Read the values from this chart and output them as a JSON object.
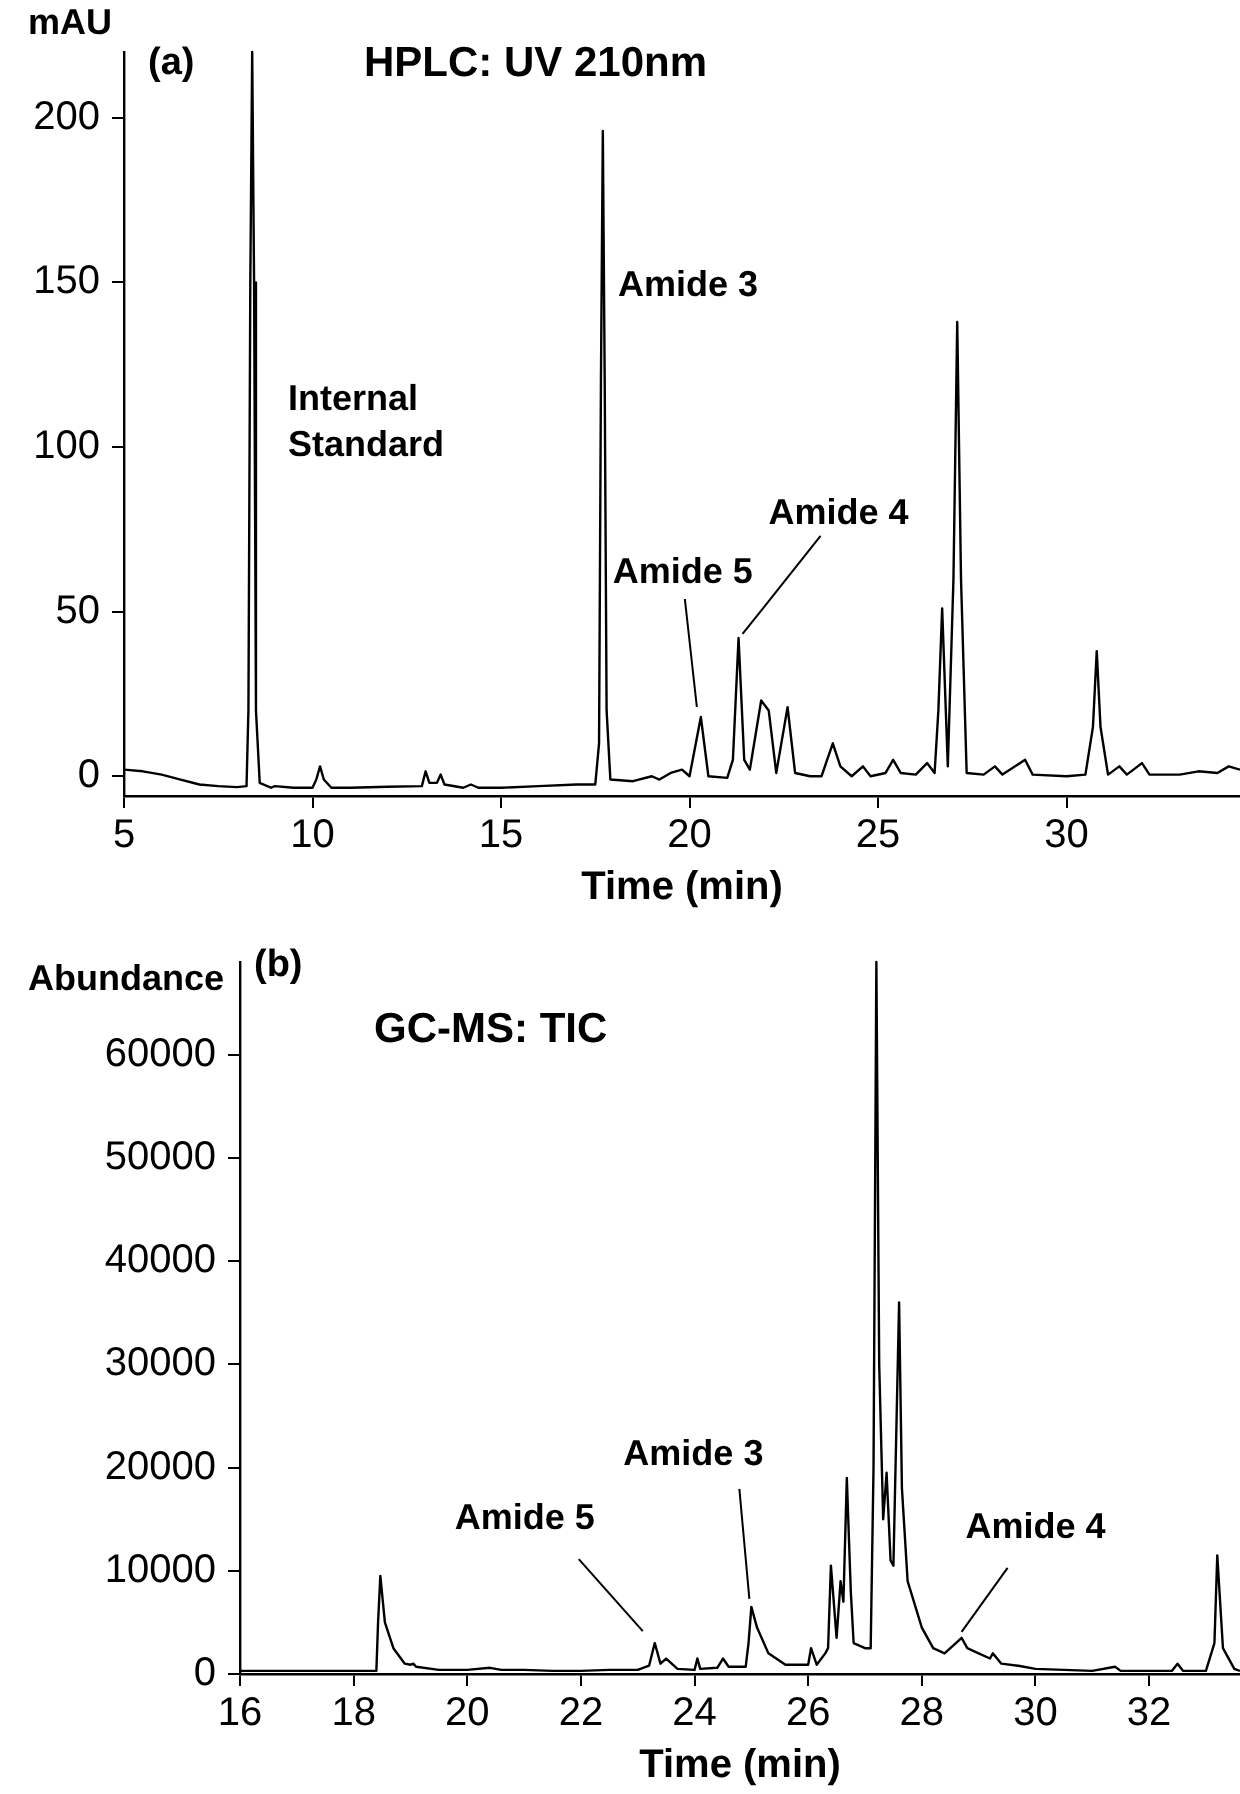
{
  "chart_data": [
    {
      "type": "line",
      "title": "HPLC: UV 210nm",
      "xlabel": "Time (min)",
      "ylabel": "mAU",
      "marker": "none",
      "line_style": "solid",
      "annotations": [
        "(a)",
        "Internal Standard",
        "Amide 3",
        {
          "text": "Amide 5",
          "x": 20.3,
          "y": 18
        },
        {
          "text": "Amide 4",
          "x": 21.3,
          "y": 42
        }
      ],
      "xlim": [
        5,
        34.6
      ],
      "ylim": [
        -6,
        220
      ],
      "xticks": [
        5,
        10,
        15,
        20,
        25,
        30
      ],
      "yticks": [
        0,
        50,
        100,
        150,
        200
      ],
      "x": [
        5,
        5.5,
        6,
        6.5,
        7,
        7.5,
        8,
        8.25,
        8.3,
        8.35,
        8.4,
        8.45,
        8.5,
        8.6,
        8.9,
        9,
        9.5,
        10,
        10.1,
        10.2,
        10.3,
        10.5,
        11,
        12,
        12.9,
        13,
        13.1,
        13.3,
        13.4,
        13.5,
        14,
        14.2,
        14.4,
        15,
        16,
        17,
        17.5,
        17.6,
        17.65,
        17.7,
        17.75,
        17.8,
        17.9,
        18.5,
        19,
        19.2,
        19.5,
        19.8,
        20,
        20.3,
        20.5,
        21,
        21.15,
        21.3,
        21.45,
        21.6,
        21.9,
        22.1,
        22.3,
        22.6,
        22.8,
        23.2,
        23.5,
        23.8,
        24,
        24.3,
        24.6,
        24.8,
        25.2,
        25.4,
        25.6,
        26,
        26.3,
        26.5,
        26.6,
        26.7,
        26.85,
        27,
        27.1,
        27.2,
        27.35,
        27.8,
        28.1,
        28.3,
        28.9,
        29.1,
        30,
        30.5,
        30.7,
        30.8,
        30.9,
        31.1,
        31.4,
        31.6,
        32,
        32.2,
        33,
        33.5,
        34,
        34.3,
        34.6
      ],
      "series": [
        {
          "color": "#000000",
          "values": [
            2,
            1.5,
            0.5,
            -1,
            -2.5,
            -3,
            -3.3,
            -3,
            20,
            150,
            220,
            150,
            20,
            -2,
            -3.5,
            -3,
            -3.5,
            -3.5,
            -1,
            3,
            -1,
            -3.5,
            -3.5,
            -3.2,
            -3,
            1.5,
            -2,
            -2,
            0.5,
            -2.5,
            -3.5,
            -2.5,
            -3.5,
            -3.5,
            -3,
            -2.5,
            -2.5,
            10,
            120,
            196,
            120,
            20,
            -1,
            -1.5,
            0,
            -1,
            1,
            2,
            0,
            18,
            0,
            -0.5,
            5,
            42,
            5,
            2,
            23,
            20,
            1,
            21,
            1,
            0,
            0,
            10,
            3,
            0,
            3,
            0,
            1,
            5,
            1,
            0.5,
            4,
            1,
            20,
            51,
            3,
            60,
            138,
            60,
            1,
            0.5,
            3,
            0.5,
            5,
            0.5,
            0,
            0.5,
            15,
            38,
            15,
            0.5,
            3,
            0.5,
            4,
            0.5,
            0.5,
            1.5,
            1,
            3,
            2
          ]
        }
      ]
    },
    {
      "type": "line",
      "title": "GC-MS: TIC",
      "xlabel": "Time (min)",
      "ylabel": "Abundance",
      "marker": "none",
      "line_style": "solid",
      "annotations": [
        "(b)",
        {
          "text": "Amide 5",
          "x": 23.3,
          "y": 3000
        },
        {
          "text": "Amide 3",
          "x": 25.0,
          "y": 6500
        },
        {
          "text": "Amide 4",
          "x": 28.7,
          "y": 3500
        }
      ],
      "xlim": [
        16,
        33.6
      ],
      "ylim": [
        0,
        69000
      ],
      "xticks": [
        16,
        18,
        20,
        22,
        24,
        26,
        28,
        30,
        32
      ],
      "yticks": [
        0,
        10000,
        20000,
        30000,
        40000,
        50000,
        60000
      ],
      "x": [
        16,
        16.5,
        17,
        17.5,
        18,
        18.4,
        18.43,
        18.47,
        18.55,
        18.7,
        18.9,
        19,
        19.05,
        19.1,
        19.5,
        20,
        20.4,
        20.6,
        21,
        21.5,
        22,
        22.5,
        23,
        23.2,
        23.3,
        23.4,
        23.5,
        23.7,
        24,
        24.05,
        24.1,
        24.4,
        24.5,
        24.6,
        24.9,
        24.95,
        25.0,
        25.1,
        25.3,
        25.6,
        26,
        26.05,
        26.15,
        26.3,
        26.35,
        26.4,
        26.5,
        26.57,
        26.62,
        26.68,
        26.75,
        26.8,
        27,
        27.1,
        27.15,
        27.2,
        27.25,
        27.32,
        27.38,
        27.45,
        27.5,
        27.6,
        27.65,
        27.75,
        28,
        28.2,
        28.4,
        28.6,
        28.7,
        28.8,
        29,
        29.2,
        29.25,
        29.4,
        29.7,
        30,
        31,
        31.4,
        31.5,
        32,
        32.4,
        32.5,
        32.6,
        33,
        33.15,
        33.2,
        33.3,
        33.5,
        33.6
      ],
      "series": [
        {
          "color": "#000000",
          "values": [
            300,
            300,
            300,
            300,
            300,
            300,
            5000,
            9500,
            5000,
            2500,
            1000,
            900,
            1000,
            700,
            400,
            400,
            600,
            400,
            400,
            300,
            300,
            400,
            400,
            800,
            3000,
            1000,
            1500,
            500,
            400,
            1500,
            500,
            600,
            1500,
            700,
            700,
            3000,
            6500,
            4500,
            2000,
            900,
            900,
            2500,
            900,
            2000,
            2500,
            10500,
            3500,
            9000,
            7000,
            19000,
            8000,
            3000,
            2500,
            2500,
            20000,
            69000,
            30000,
            15000,
            19500,
            11000,
            10500,
            36000,
            18000,
            9000,
            4500,
            2500,
            2000,
            3000,
            3500,
            2500,
            2000,
            1500,
            2000,
            1000,
            800,
            500,
            300,
            700,
            300,
            300,
            300,
            1000,
            300,
            300,
            3000,
            11500,
            2500,
            500,
            300
          ]
        }
      ]
    }
  ]
}
